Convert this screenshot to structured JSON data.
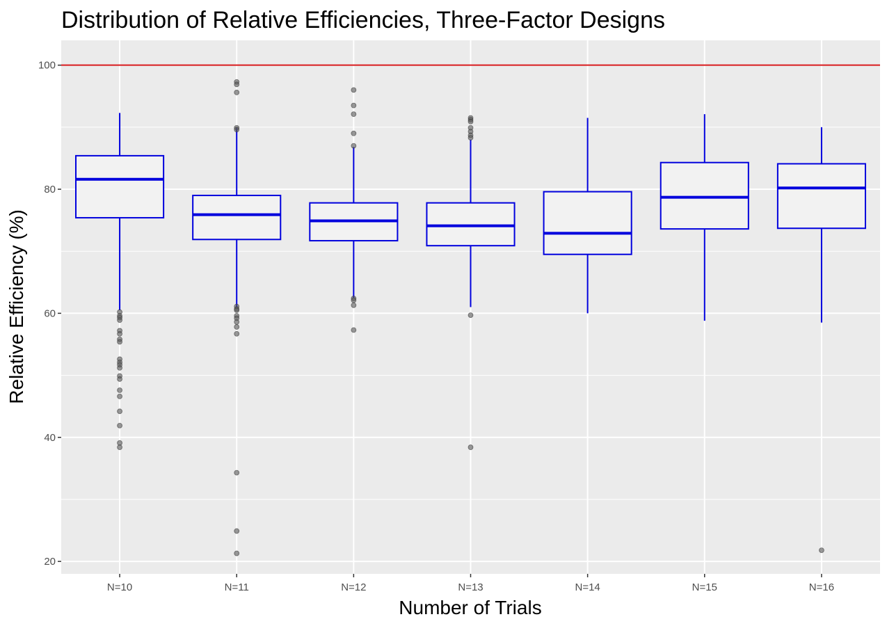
{
  "chart_data": {
    "type": "boxplot",
    "title": "Distribution of Relative Efficiencies, Three-Factor Designs",
    "xlabel": "Number of Trials",
    "ylabel": "Relative Efficiency (%)",
    "ylim": [
      18,
      104
    ],
    "yticks": [
      20,
      40,
      60,
      80,
      100
    ],
    "reference_line": {
      "value": 100,
      "color": "#d7191c"
    },
    "colors": {
      "panel": "#ebebeb",
      "grid": "#ffffff",
      "box_line": "#0000dd",
      "box_fill": "#f2f2f2",
      "outlier": "#555555"
    },
    "categories": [
      "N=10",
      "N=11",
      "N=12",
      "N=13",
      "N=14",
      "N=15",
      "N=16"
    ],
    "boxes": [
      {
        "label": "N=10",
        "whisker_low": 60.5,
        "q1": 75.4,
        "median": 81.6,
        "q3": 85.4,
        "whisker_high": 92.3,
        "outliers": [
          60.2,
          59.6,
          59.3,
          58.9,
          57.2,
          56.7,
          55.8,
          55.4,
          52.6,
          52.1,
          51.7,
          51.2,
          49.9,
          49.4,
          47.6,
          46.6,
          44.2,
          41.9,
          39.1,
          38.4
        ]
      },
      {
        "label": "N=11",
        "whisker_low": 61.0,
        "q1": 71.9,
        "median": 75.9,
        "q3": 79.0,
        "whisker_high": 89.9,
        "outliers": [
          97.3,
          96.9,
          95.6,
          89.9,
          89.6,
          61.1,
          60.7,
          60.5,
          59.6,
          59.2,
          58.6,
          57.8,
          56.7,
          34.3,
          24.9,
          21.3
        ]
      },
      {
        "label": "N=12",
        "whisker_low": 62.5,
        "q1": 71.7,
        "median": 74.9,
        "q3": 77.8,
        "whisker_high": 86.8,
        "outliers": [
          96.0,
          93.5,
          92.1,
          89.0,
          87.0,
          62.4,
          62.1,
          61.3,
          57.3
        ]
      },
      {
        "label": "N=13",
        "whisker_low": 61.0,
        "q1": 70.9,
        "median": 74.1,
        "q3": 77.8,
        "whisker_high": 88.0,
        "outliers": [
          91.5,
          91.2,
          90.9,
          89.9,
          89.3,
          88.7,
          88.3,
          59.7,
          38.4
        ]
      },
      {
        "label": "N=14",
        "whisker_low": 60.0,
        "q1": 69.5,
        "median": 72.9,
        "q3": 79.6,
        "whisker_high": 91.5,
        "outliers": []
      },
      {
        "label": "N=15",
        "whisker_low": 58.8,
        "q1": 73.6,
        "median": 78.7,
        "q3": 84.3,
        "whisker_high": 92.1,
        "outliers": []
      },
      {
        "label": "N=16",
        "whisker_low": 58.5,
        "q1": 73.7,
        "median": 80.2,
        "q3": 84.1,
        "whisker_high": 90.0,
        "outliers": [
          21.8
        ]
      }
    ]
  }
}
